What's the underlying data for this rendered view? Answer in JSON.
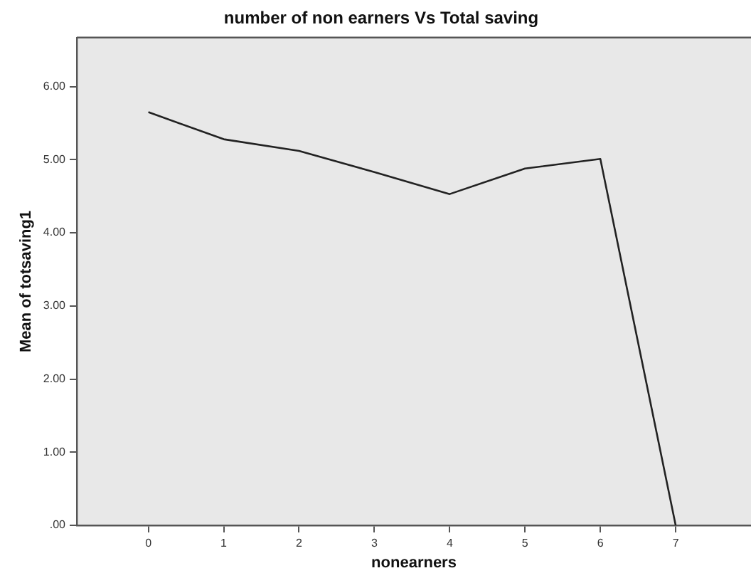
{
  "chart_data": {
    "type": "line",
    "title": "number of non earners Vs Total saving",
    "xlabel": "nonearners",
    "ylabel": "Mean of totsaving1",
    "x": [
      0,
      1,
      2,
      3,
      4,
      5,
      6,
      7
    ],
    "series": [
      {
        "color": "#222222",
        "values": [
          5.65,
          5.28,
          5.12,
          4.83,
          4.53,
          4.88,
          5.01,
          0
        ]
      }
    ],
    "xlim": [
      -0.95,
      8
    ],
    "xticks": [
      0,
      1,
      2,
      3,
      4,
      5,
      6,
      7
    ],
    "ylim": [
      0,
      6.67
    ],
    "yticks": [
      {
        "value": 0,
        "label": ".00"
      },
      {
        "value": 1,
        "label": "1.00"
      },
      {
        "value": 2,
        "label": "2.00"
      },
      {
        "value": 3,
        "label": "3.00"
      },
      {
        "value": 4,
        "label": "4.00"
      },
      {
        "value": 5,
        "label": "5.00"
      },
      {
        "value": 6,
        "label": "6.00"
      }
    ],
    "marker": "none",
    "line_style": "solid"
  }
}
